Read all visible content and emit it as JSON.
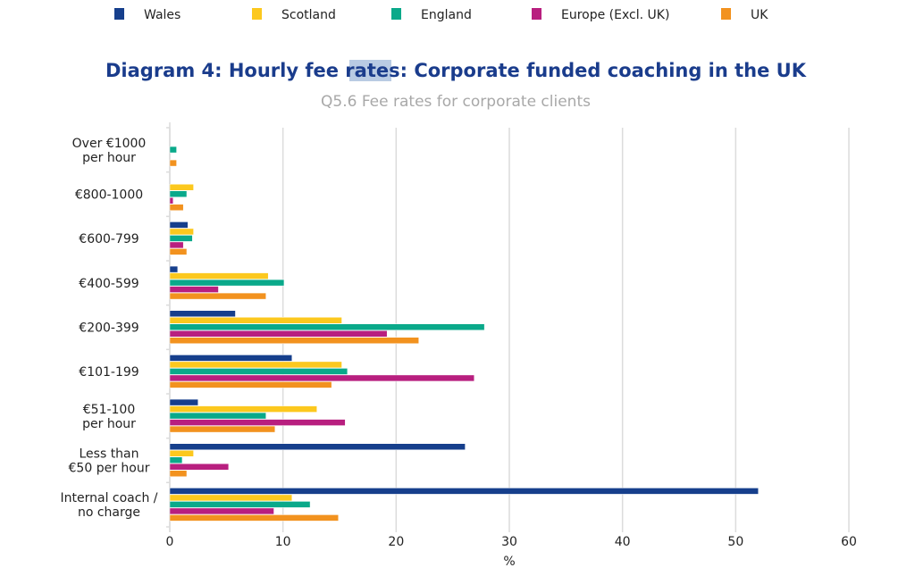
{
  "chart_data": {
    "type": "bar",
    "orientation": "horizontal",
    "title": "Diagram 4: Hourly fee rates: Corporate funded coaching in the UK",
    "subtitle": "Q5.6 Fee rates for corporate clients",
    "xlabel": "%",
    "ylabel": "",
    "xlim": [
      0,
      60
    ],
    "xticks": [
      "0",
      "10",
      "20",
      "30",
      "40",
      "50",
      "60"
    ],
    "grid": true,
    "legend_position": "top",
    "categories": [
      [
        "Over €1000",
        "per hour"
      ],
      [
        "€800-1000"
      ],
      [
        "€600-799"
      ],
      [
        "€400-599"
      ],
      [
        "€200-399"
      ],
      [
        "€101-199"
      ],
      [
        "€51-100",
        "per hour"
      ],
      [
        "Less than",
        "€50 per hour"
      ],
      [
        "Internal coach /",
        "no charge"
      ]
    ],
    "series": [
      {
        "name": "Wales",
        "color": "#163f8c",
        "values": [
          0,
          0,
          1.6,
          0.7,
          5.8,
          10.8,
          2.5,
          26.1,
          52.0
        ]
      },
      {
        "name": "Scotland",
        "color": "#fcc81e",
        "values": [
          0,
          2.1,
          2.1,
          8.7,
          15.2,
          15.2,
          13.0,
          2.1,
          10.8
        ]
      },
      {
        "name": "England",
        "color": "#0aa98a",
        "values": [
          0.6,
          1.5,
          2.0,
          10.1,
          27.8,
          15.7,
          8.5,
          1.1,
          12.4
        ]
      },
      {
        "name": "Europe (Excl. UK)",
        "color": "#b81f7f",
        "values": [
          0,
          0.3,
          1.2,
          4.3,
          19.2,
          26.9,
          15.5,
          5.2,
          9.2
        ]
      },
      {
        "name": "UK",
        "color": "#f2921f",
        "values": [
          0.6,
          1.2,
          1.5,
          8.5,
          22.0,
          14.3,
          9.3,
          1.5,
          14.9
        ]
      }
    ]
  }
}
